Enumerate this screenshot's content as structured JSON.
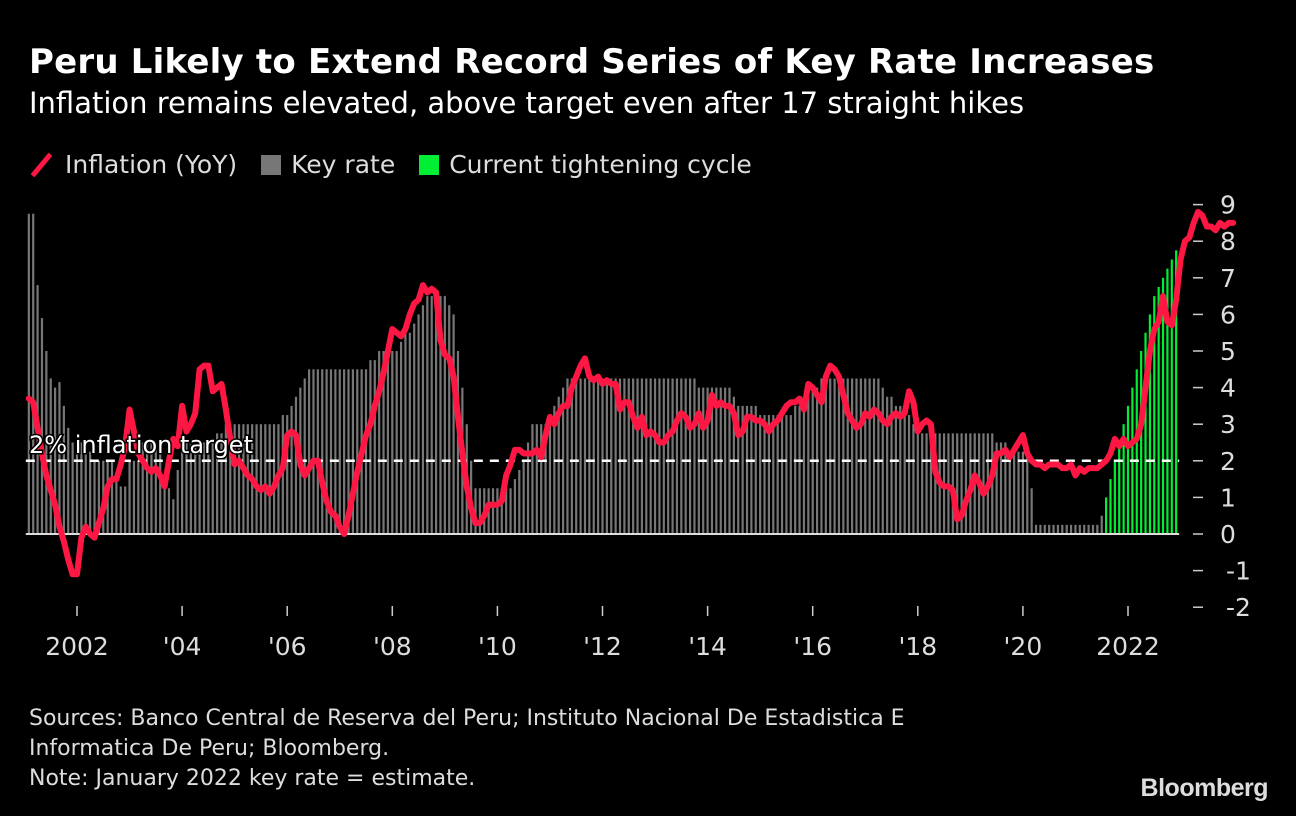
{
  "title": "Peru Likely to Extend Record Series of Key Rate Increases",
  "subtitle": "Inflation remains elevated, above target even after 17 straight hikes",
  "legend": [
    {
      "label": "Inflation (YoY)",
      "kind": "line",
      "color": "#ff1744"
    },
    {
      "label": "Key rate",
      "kind": "box",
      "color": "#777777"
    },
    {
      "label": "Current tightening cycle",
      "kind": "box",
      "color": "#00ee33"
    }
  ],
  "footer": {
    "sources_line1": "Sources: Banco Central de Reserva del Peru; Instituto Nacional De Estadistica E",
    "sources_line2": "Informatica De Peru; Bloomberg.",
    "note": "Note: January 2022 key rate = estimate."
  },
  "brand": "Bloomberg",
  "chart_data": {
    "type": "bar+line",
    "title": "Peru Likely to Extend Record Series of Key Rate Increases",
    "xlabel": "",
    "ylabel": "",
    "frequency": "monthly",
    "start": "2001-02",
    "ylim": [
      -2,
      9
    ],
    "yticks": [
      9,
      8,
      7,
      6,
      5,
      4,
      3,
      2,
      1,
      0,
      -1,
      -2
    ],
    "ytick_labels": [
      "9",
      "8",
      "7",
      "6",
      "5",
      "4",
      "3",
      "2",
      "1",
      "0",
      "-1",
      "-2"
    ],
    "y_axis_side": "right",
    "xticks": [
      {
        "year": 2002,
        "label": "2002"
      },
      {
        "year": 2004,
        "label": "'04"
      },
      {
        "year": 2006,
        "label": "'06"
      },
      {
        "year": 2008,
        "label": "'08"
      },
      {
        "year": 2010,
        "label": "'10"
      },
      {
        "year": 2012,
        "label": "'12"
      },
      {
        "year": 2014,
        "label": "'14"
      },
      {
        "year": 2016,
        "label": "'16"
      },
      {
        "year": 2018,
        "label": "'18"
      },
      {
        "year": 2020,
        "label": "'20"
      },
      {
        "year": 2022,
        "label": "2022"
      }
    ],
    "reference_line": {
      "value": 2,
      "label": "2% inflation target",
      "style": "dashed",
      "color": "#ffffff"
    },
    "tightening_cycle_start": "2021-08",
    "series": [
      {
        "name": "Key rate",
        "type": "bar",
        "color": "#777777",
        "highlight_color": "#00ee33",
        "values": [
          8.75,
          8.75,
          6.8,
          5.9,
          5.0,
          4.25,
          4.0,
          4.15,
          3.5,
          2.9,
          2.5,
          2.5,
          2.5,
          2.5,
          2.25,
          2.0,
          2.0,
          2.0,
          2.0,
          2.0,
          1.5,
          1.3,
          1.3,
          2.0,
          2.0,
          2.0,
          2.5,
          2.5,
          2.5,
          2.5,
          2.25,
          1.5,
          1.25,
          0.95,
          1.75,
          2.5,
          2.5,
          2.5,
          2.5,
          2.5,
          2.5,
          2.5,
          2.5,
          2.75,
          2.75,
          3.0,
          3.0,
          3.0,
          3.0,
          3.0,
          3.0,
          3.0,
          3.0,
          3.0,
          3.0,
          3.0,
          3.0,
          3.0,
          3.25,
          3.25,
          3.5,
          3.75,
          4.0,
          4.25,
          4.5,
          4.5,
          4.5,
          4.5,
          4.5,
          4.5,
          4.5,
          4.5,
          4.5,
          4.5,
          4.5,
          4.5,
          4.5,
          4.5,
          4.75,
          4.75,
          5.0,
          5.0,
          5.0,
          5.0,
          5.0,
          5.25,
          5.5,
          5.5,
          5.75,
          6.0,
          6.25,
          6.5,
          6.5,
          6.5,
          6.5,
          6.5,
          6.25,
          6.0,
          5.0,
          4.0,
          3.0,
          2.0,
          1.25,
          1.25,
          1.25,
          1.25,
          1.25,
          1.25,
          1.25,
          1.25,
          1.25,
          1.5,
          1.75,
          2.0,
          2.5,
          3.0,
          3.0,
          3.0,
          3.0,
          3.25,
          3.5,
          3.75,
          4.0,
          4.25,
          4.25,
          4.25,
          4.25,
          4.25,
          4.25,
          4.25,
          4.25,
          4.25,
          4.25,
          4.25,
          4.25,
          4.25,
          4.25,
          4.25,
          4.25,
          4.25,
          4.25,
          4.25,
          4.25,
          4.25,
          4.25,
          4.25,
          4.25,
          4.25,
          4.25,
          4.25,
          4.25,
          4.25,
          4.25,
          4.0,
          4.0,
          4.0,
          4.0,
          4.0,
          4.0,
          4.0,
          4.0,
          3.75,
          3.5,
          3.5,
          3.5,
          3.5,
          3.5,
          3.25,
          3.25,
          3.25,
          3.25,
          3.25,
          3.25,
          3.25,
          3.25,
          3.5,
          3.5,
          3.75,
          3.75,
          4.0,
          4.0,
          4.25,
          4.25,
          4.25,
          4.25,
          4.25,
          4.25,
          4.25,
          4.25,
          4.25,
          4.25,
          4.25,
          4.25,
          4.25,
          4.25,
          4.0,
          3.75,
          3.75,
          3.5,
          3.5,
          3.25,
          3.25,
          3.0,
          3.0,
          2.75,
          2.75,
          2.75,
          2.75,
          2.75,
          2.75,
          2.75,
          2.75,
          2.75,
          2.75,
          2.75,
          2.75,
          2.75,
          2.75,
          2.75,
          2.75,
          2.75,
          2.5,
          2.5,
          2.5,
          2.25,
          2.25,
          2.25,
          2.25,
          2.25,
          1.25,
          0.25,
          0.25,
          0.25,
          0.25,
          0.25,
          0.25,
          0.25,
          0.25,
          0.25,
          0.25,
          0.25,
          0.25,
          0.25,
          0.25,
          0.25,
          0.5,
          1.0,
          1.5,
          2.0,
          2.5,
          3.0,
          3.5,
          4.0,
          4.5,
          5.0,
          5.5,
          6.0,
          6.5,
          6.75,
          7.0,
          7.25,
          7.5,
          7.75
        ]
      },
      {
        "name": "Inflation (YoY)",
        "type": "line",
        "color": "#ff1744",
        "values": [
          3.7,
          3.6,
          2.9,
          2.2,
          1.6,
          1.2,
          0.8,
          0.2,
          -0.2,
          -0.7,
          -1.1,
          -1.1,
          -0.1,
          0.2,
          0.0,
          -0.1,
          0.3,
          0.7,
          1.3,
          1.5,
          1.5,
          1.9,
          2.4,
          3.4,
          2.8,
          2.2,
          2.0,
          1.8,
          1.7,
          1.8,
          1.6,
          1.3,
          2.0,
          2.6,
          2.4,
          3.5,
          2.8,
          3.0,
          3.3,
          4.5,
          4.6,
          4.6,
          3.9,
          4.0,
          4.1,
          3.4,
          2.6,
          1.9,
          2.0,
          1.8,
          1.6,
          1.5,
          1.3,
          1.2,
          1.3,
          1.1,
          1.3,
          1.6,
          1.8,
          2.7,
          2.8,
          2.7,
          1.9,
          1.6,
          1.8,
          2.0,
          2.0,
          1.4,
          0.9,
          0.6,
          0.5,
          0.2,
          0.0,
          0.5,
          1.1,
          1.7,
          2.2,
          2.7,
          3.0,
          3.5,
          3.9,
          4.4,
          5.0,
          5.6,
          5.5,
          5.4,
          5.6,
          6.0,
          6.3,
          6.4,
          6.8,
          6.6,
          6.7,
          6.6,
          5.3,
          4.9,
          4.8,
          4.3,
          3.2,
          2.2,
          1.3,
          0.7,
          0.3,
          0.3,
          0.5,
          0.8,
          0.8,
          0.8,
          0.9,
          1.6,
          1.9,
          2.3,
          2.3,
          2.2,
          2.2,
          2.2,
          2.3,
          2.1,
          2.7,
          3.2,
          3.0,
          3.3,
          3.5,
          3.5,
          4.0,
          4.3,
          4.6,
          4.8,
          4.3,
          4.2,
          4.3,
          4.1,
          4.2,
          4.1,
          4.1,
          3.4,
          3.6,
          3.6,
          3.2,
          2.9,
          3.2,
          2.7,
          2.8,
          2.7,
          2.5,
          2.5,
          2.7,
          2.8,
          3.1,
          3.3,
          3.2,
          2.9,
          3.0,
          3.3,
          2.9,
          3.1,
          3.8,
          3.5,
          3.6,
          3.5,
          3.5,
          3.3,
          2.7,
          2.8,
          3.2,
          3.2,
          3.1,
          3.1,
          3.0,
          2.8,
          3.0,
          3.1,
          3.3,
          3.5,
          3.6,
          3.6,
          3.7,
          3.4,
          4.1,
          4.0,
          3.8,
          3.6,
          4.3,
          4.6,
          4.5,
          4.3,
          3.8,
          3.3,
          3.1,
          2.9,
          3.0,
          3.3,
          3.2,
          3.4,
          3.3,
          3.1,
          3.0,
          3.2,
          3.3,
          3.2,
          3.3,
          3.9,
          3.6,
          2.8,
          3.0,
          3.1,
          3.0,
          1.7,
          1.4,
          1.3,
          1.3,
          1.2,
          0.4,
          0.5,
          0.9,
          1.2,
          1.6,
          1.4,
          1.1,
          1.3,
          1.6,
          2.2,
          2.2,
          2.3,
          2.1,
          2.3,
          2.5,
          2.7,
          2.2,
          2.0,
          1.9,
          1.9,
          1.8,
          1.9,
          1.9,
          1.9,
          1.8,
          1.8,
          1.9,
          1.6,
          1.8,
          1.7,
          1.8,
          1.8,
          1.8,
          1.9,
          2.0,
          2.2,
          2.6,
          2.4,
          2.6,
          2.4,
          2.5,
          2.6,
          3.0,
          4.0,
          5.0,
          5.6,
          5.8,
          6.5,
          5.8,
          5.7,
          6.4,
          7.5,
          8.0,
          8.1,
          8.5,
          8.8,
          8.7,
          8.4,
          8.4,
          8.3,
          8.5,
          8.4,
          8.5,
          8.5
        ]
      }
    ]
  }
}
